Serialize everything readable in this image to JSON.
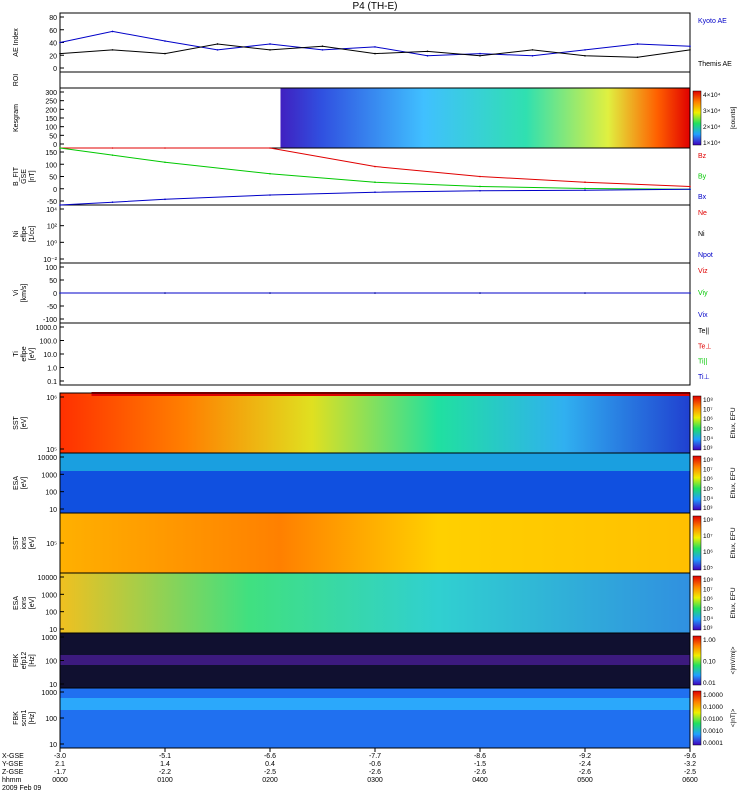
{
  "title": "P4 (TH-E)",
  "colors": {
    "red": "#e00000",
    "green": "#00c800",
    "blue": "#0000c8",
    "black": "#000000",
    "cyan": "#00c8c8"
  },
  "panels": [
    {
      "id": "ae",
      "ylabel": [
        "AE Index"
      ],
      "ticks": [
        "80",
        "60",
        "40",
        "20",
        "0"
      ],
      "legend": [
        {
          "text": "Kyoto AE",
          "color": "blue"
        },
        {
          "text": "Themis AE",
          "color": "black"
        }
      ]
    },
    {
      "id": "roi",
      "ylabel": [
        "ROI"
      ],
      "ticks": [],
      "legend": []
    },
    {
      "id": "kesgram",
      "ylabel": [
        "Kesgram"
      ],
      "ticks": [
        "300",
        "250",
        "200",
        "150",
        "100",
        "50",
        "0"
      ],
      "legend": []
    },
    {
      "id": "bfit",
      "ylabel": [
        "B_FIT",
        "GSE",
        "[nT]"
      ],
      "ticks": [
        "150",
        "100",
        "50",
        "0",
        "-50"
      ],
      "legend": [
        {
          "text": "Bz",
          "color": "red"
        },
        {
          "text": "By",
          "color": "green"
        },
        {
          "text": "Bx",
          "color": "blue"
        }
      ]
    },
    {
      "id": "ni",
      "ylabel": [
        "Ni",
        "eflpe",
        "[1/cc]"
      ],
      "ticks": [
        "10⁴",
        "10²",
        "10⁰",
        "10⁻²"
      ],
      "legend": [
        {
          "text": "Ne",
          "color": "red"
        },
        {
          "text": "Ni",
          "color": "black"
        },
        {
          "text": "Npot",
          "color": "blue"
        }
      ]
    },
    {
      "id": "vi",
      "ylabel": [
        "Vi",
        "[km/s]"
      ],
      "ticks": [
        "100",
        "50",
        "0",
        "-50",
        "-100"
      ],
      "legend": [
        {
          "text": "Viz",
          "color": "red"
        },
        {
          "text": "Viy",
          "color": "green"
        },
        {
          "text": "Vix",
          "color": "blue"
        }
      ]
    },
    {
      "id": "ti",
      "ylabel": [
        "Ti",
        "eflpe",
        "[eV]"
      ],
      "ticks": [
        "1000.0",
        "100.0",
        "10.0",
        "1.0",
        "0.1"
      ],
      "legend": [
        {
          "text": "Te||",
          "color": "black"
        },
        {
          "text": "Te⊥",
          "color": "red"
        },
        {
          "text": "Ti||",
          "color": "green"
        },
        {
          "text": "Ti⊥",
          "color": "blue"
        }
      ]
    },
    {
      "id": "sst_e",
      "ylabel": [
        "SST",
        "[eV]"
      ],
      "ticks": [
        "10⁶",
        "10⁵"
      ],
      "legend": []
    },
    {
      "id": "esa_e",
      "ylabel": [
        "ESA",
        "[eV]"
      ],
      "ticks": [
        "10000",
        "1000",
        "100",
        "10"
      ],
      "legend": []
    },
    {
      "id": "sst_i",
      "ylabel": [
        "SST",
        "ions",
        "[eV]"
      ],
      "ticks": [
        "10⁵"
      ],
      "legend": []
    },
    {
      "id": "esa_i",
      "ylabel": [
        "ESA",
        "ions",
        "[eV]"
      ],
      "ticks": [
        "10000",
        "1000",
        "100",
        "10"
      ],
      "legend": []
    },
    {
      "id": "fbk1",
      "ylabel": [
        "FBK",
        "efp12",
        "[Hz]"
      ],
      "ticks": [
        "1000",
        "100",
        "10"
      ],
      "legend": []
    },
    {
      "id": "fbk2",
      "ylabel": [
        "FBK",
        "scm1",
        "[Hz]"
      ],
      "ticks": [
        "1000",
        "100",
        "10"
      ],
      "legend": []
    }
  ],
  "colorbars": [
    {
      "panel": "kesgram",
      "labels": [
        "4×10⁴",
        "3×10⁴",
        "2×10⁴",
        "1×10⁴"
      ],
      "unit": "[counts]"
    },
    {
      "panel": "sst_e",
      "labels": [
        "10⁸",
        "10⁷",
        "10⁶",
        "10⁵",
        "10⁴",
        "10³"
      ],
      "unit": "Eflux, EFU"
    },
    {
      "panel": "esa_e",
      "labels": [
        "10⁸",
        "10⁷",
        "10⁶",
        "10⁵",
        "10⁴",
        "10³"
      ],
      "unit": "Eflux, EFU"
    },
    {
      "panel": "sst_i",
      "labels": [
        "10⁸",
        "10⁷",
        "10⁶",
        "10⁵"
      ],
      "unit": "Eflux, EFU"
    },
    {
      "panel": "esa_i",
      "labels": [
        "10⁸",
        "10⁷",
        "10⁶",
        "10⁵",
        "10⁴",
        "10³"
      ],
      "unit": "Eflux, EFU"
    },
    {
      "panel": "fbk1",
      "labels": [
        "1.00",
        "0.10",
        "0.01"
      ],
      "unit": "<|mV/m|>"
    },
    {
      "panel": "fbk2",
      "labels": [
        "1.0000",
        "0.1000",
        "0.0100",
        "0.0010",
        "0.0001"
      ],
      "unit": "<|nT|>"
    }
  ],
  "time_axis": {
    "row_labels": [
      "X-GSE",
      "Y-GSE",
      "Z-GSE",
      "hhmm",
      "2009 Feb 09"
    ],
    "columns": [
      {
        "x": "-3.0",
        "y": "2.1",
        "z": "-1.7",
        "t": "0000"
      },
      {
        "x": "-5.1",
        "y": "1.4",
        "z": "-2.2",
        "t": "0100"
      },
      {
        "x": "-6.6",
        "y": "0.4",
        "z": "-2.5",
        "t": "0200"
      },
      {
        "x": "-7.7",
        "y": "-0.6",
        "z": "-2.6",
        "t": "0300"
      },
      {
        "x": "-8.6",
        "y": "-1.5",
        "z": "-2.6",
        "t": "0400"
      },
      {
        "x": "-9.2",
        "y": "-2.4",
        "z": "-2.6",
        "t": "0500"
      },
      {
        "x": "-9.6",
        "y": "-3.2",
        "z": "-2.5",
        "t": "0600"
      }
    ]
  },
  "chart_data": [
    {
      "type": "line",
      "title": "P4 (TH-E)",
      "ylabel": "AE Index",
      "ylim": [
        0,
        80
      ],
      "x_hours": [
        0,
        0.5,
        1,
        1.5,
        2,
        2.5,
        3,
        3.5,
        4,
        4.5,
        5,
        5.5,
        6
      ],
      "series": [
        {
          "name": "Kyoto AE",
          "values": [
            40,
            55,
            42,
            30,
            38,
            30,
            34,
            22,
            25,
            22,
            30,
            38,
            35
          ]
        },
        {
          "name": "Themis AE",
          "values": [
            25,
            30,
            25,
            38,
            30,
            35,
            25,
            28,
            22,
            30,
            22,
            20,
            30
          ]
        }
      ]
    },
    {
      "type": "line",
      "ylabel": "B_FIT GSE [nT]",
      "ylim": [
        -50,
        150
      ],
      "x_hours": [
        0,
        0.5,
        1,
        2,
        3,
        4,
        5,
        6
      ],
      "series": [
        {
          "name": "Bz",
          "values": [
            150,
            150,
            150,
            150,
            85,
            50,
            30,
            15
          ]
        },
        {
          "name": "By",
          "values": [
            150,
            125,
            100,
            60,
            30,
            15,
            8,
            5
          ]
        },
        {
          "name": "Bx",
          "values": [
            -50,
            -40,
            -30,
            -15,
            -5,
            0,
            2,
            5
          ]
        }
      ]
    },
    {
      "type": "line",
      "ylabel": "Vi [km/s]",
      "ylim": [
        -100,
        100
      ],
      "x_hours": [
        0,
        1,
        2,
        3,
        4,
        5,
        6
      ],
      "series": [
        {
          "name": "Viz",
          "values": [
            0,
            0,
            0,
            0,
            0,
            0,
            0
          ]
        },
        {
          "name": "Viy",
          "values": [
            0,
            0,
            0,
            0,
            0,
            0,
            0
          ]
        },
        {
          "name": "Vix",
          "values": [
            0,
            0,
            0,
            0,
            0,
            0,
            0
          ]
        }
      ]
    }
  ]
}
